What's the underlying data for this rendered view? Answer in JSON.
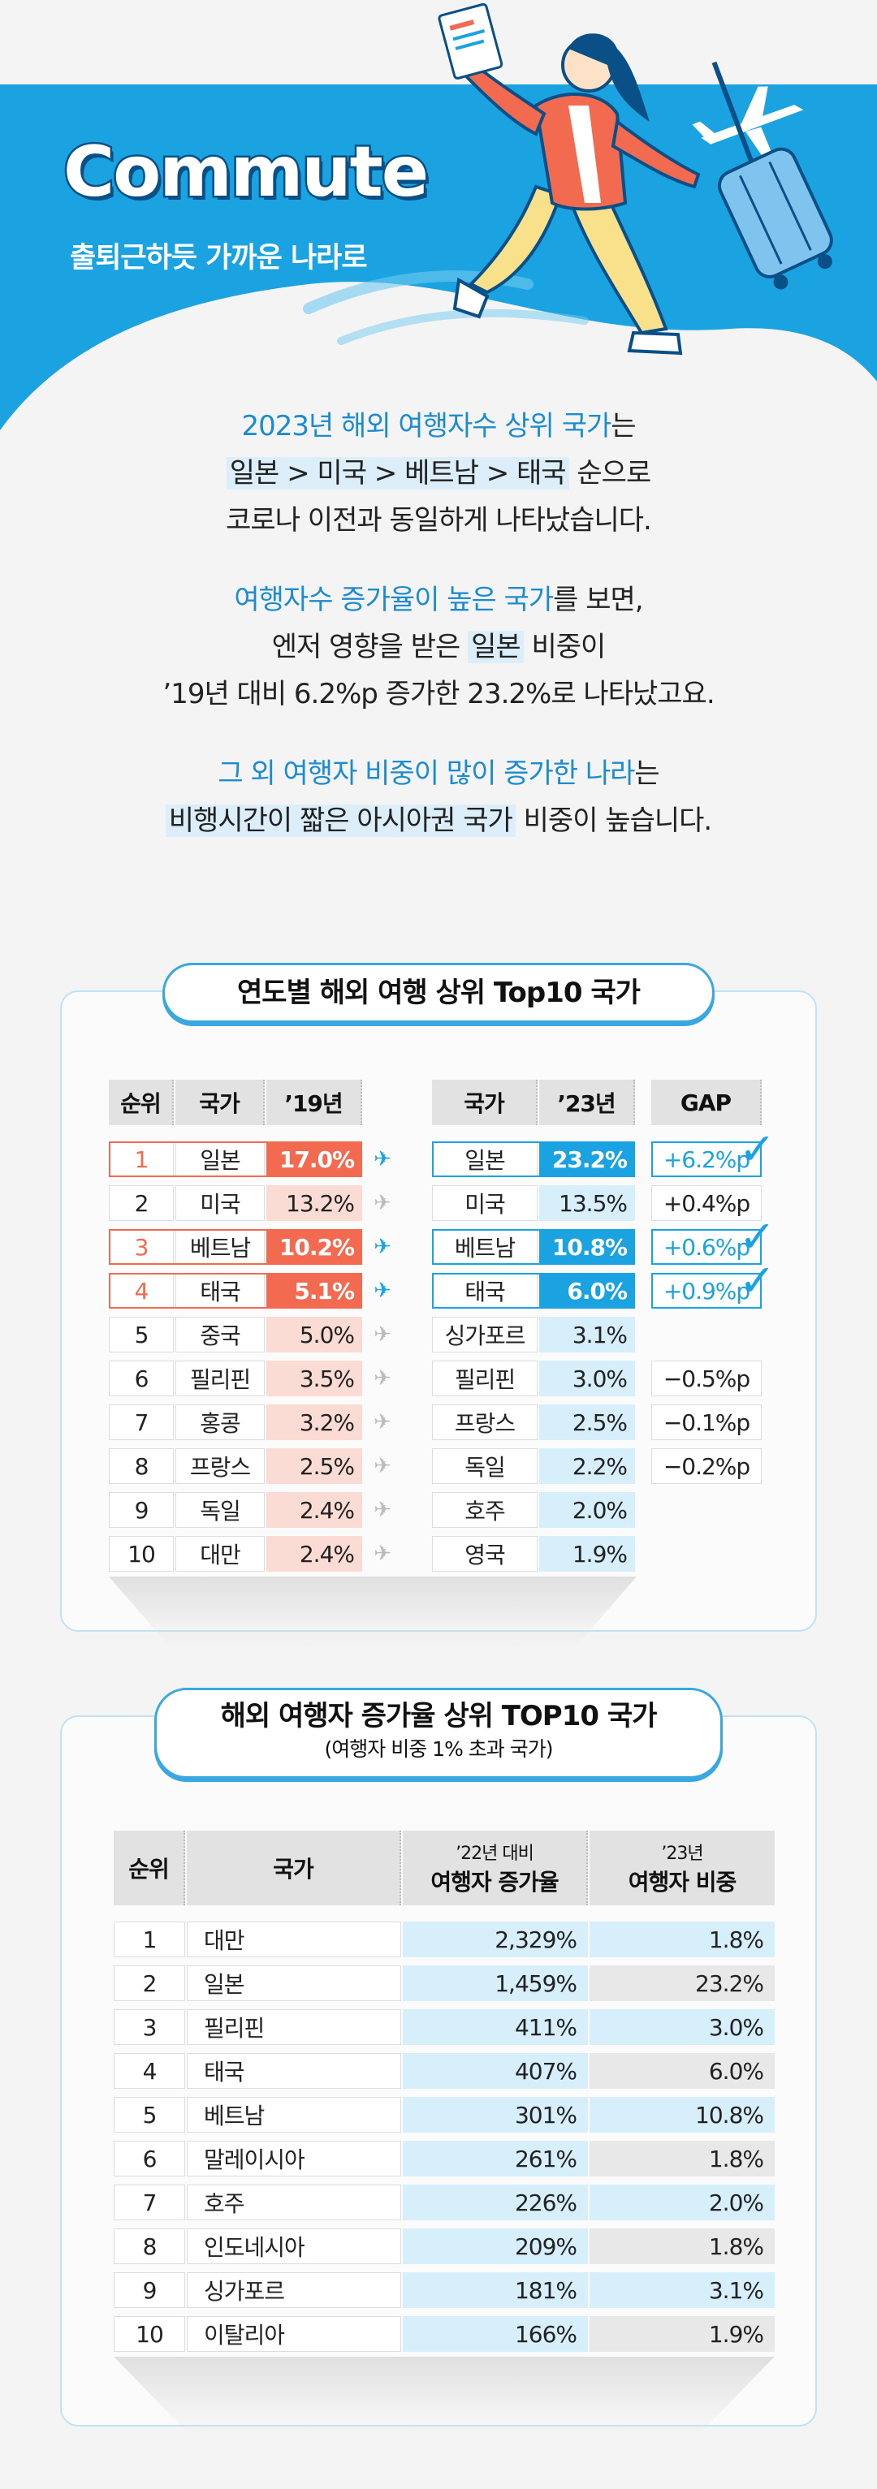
{
  "header": {
    "title": "Commute",
    "subtitle": "출퇴근하듯 가까운 나라로"
  },
  "intro": {
    "p1_line1_a": "2023년 해외 여행자수 상위 국가",
    "p1_line1_b": "는",
    "p1_line2_a": "일본 > 미국 > 베트남 > 태국",
    "p1_line2_b": " 순으로",
    "p1_line3": "코로나 이전과 동일하게 나타났습니다.",
    "p2_line1_a": "여행자수 증가율이 높은 국가",
    "p2_line1_b": "를 보면,",
    "p2_line2_a": "엔저 영향을 받은 ",
    "p2_line2_b": "일본",
    "p2_line2_c": " 비중이",
    "p2_line3": "’19년 대비 6.2%p 증가한 23.2%로 나타났고요.",
    "p3_line1_a": "그 외 여행자 비중이 많이 증가한 나라",
    "p3_line1_b": "는",
    "p3_line2_a": "비행시간이 짧은 아시아권 국가",
    "p3_line2_b": " 비중이 높습니다."
  },
  "table1": {
    "title": "연도별 해외 여행 상위 Top10 국가",
    "headers": {
      "rank": "순위",
      "country": "국가",
      "y19": "’19년",
      "country2": "국가",
      "y23": "’23년",
      "gap": "GAP"
    },
    "rows": [
      {
        "rank": "1",
        "c19": "일본",
        "v19": "17.0%",
        "c23": "일본",
        "v23": "23.2%",
        "gap": "+6.2%p",
        "highlight": true
      },
      {
        "rank": "2",
        "c19": "미국",
        "v19": "13.2%",
        "c23": "미국",
        "v23": "13.5%",
        "gap": "+0.4%p",
        "highlight": false
      },
      {
        "rank": "3",
        "c19": "베트남",
        "v19": "10.2%",
        "c23": "베트남",
        "v23": "10.8%",
        "gap": "+0.6%p",
        "highlight": true
      },
      {
        "rank": "4",
        "c19": "태국",
        "v19": "5.1%",
        "c23": "태국",
        "v23": "6.0%",
        "gap": "+0.9%p",
        "highlight": true
      },
      {
        "rank": "5",
        "c19": "중국",
        "v19": "5.0%",
        "c23": "싱가포르",
        "v23": "3.1%",
        "gap": "",
        "highlight": false
      },
      {
        "rank": "6",
        "c19": "필리핀",
        "v19": "3.5%",
        "c23": "필리핀",
        "v23": "3.0%",
        "gap": "−0.5%p",
        "highlight": false
      },
      {
        "rank": "7",
        "c19": "홍콩",
        "v19": "3.2%",
        "c23": "프랑스",
        "v23": "2.5%",
        "gap": "−0.1%p",
        "highlight": false
      },
      {
        "rank": "8",
        "c19": "프랑스",
        "v19": "2.5%",
        "c23": "독일",
        "v23": "2.2%",
        "gap": "−0.2%p",
        "highlight": false
      },
      {
        "rank": "9",
        "c19": "독일",
        "v19": "2.4%",
        "c23": "호주",
        "v23": "2.0%",
        "gap": "",
        "highlight": false
      },
      {
        "rank": "10",
        "c19": "대만",
        "v19": "2.4%",
        "c23": "영국",
        "v23": "1.9%",
        "gap": "",
        "highlight": false
      }
    ]
  },
  "table2": {
    "title": "해외 여행자 증가율 상위 TOP10 국가",
    "subtitle": "(여행자 비중 1% 초과 국가)",
    "headers": {
      "rank": "순위",
      "country": "국가",
      "growth_small": "’22년 대비",
      "growth": "여행자 증가율",
      "share_small": "’23년",
      "share": "여행자 비중"
    },
    "rows": [
      {
        "rank": "1",
        "country": "대만",
        "growth": "2,329%",
        "share": "1.8%"
      },
      {
        "rank": "2",
        "country": "일본",
        "growth": "1,459%",
        "share": "23.2%"
      },
      {
        "rank": "3",
        "country": "필리핀",
        "growth": "411%",
        "share": "3.0%"
      },
      {
        "rank": "4",
        "country": "태국",
        "growth": "407%",
        "share": "6.0%"
      },
      {
        "rank": "5",
        "country": "베트남",
        "growth": "301%",
        "share": "10.8%"
      },
      {
        "rank": "6",
        "country": "말레이시아",
        "growth": "261%",
        "share": "1.8%"
      },
      {
        "rank": "7",
        "country": "호주",
        "growth": "226%",
        "share": "2.0%"
      },
      {
        "rank": "8",
        "country": "인도네시아",
        "growth": "209%",
        "share": "1.8%"
      },
      {
        "rank": "9",
        "country": "싱가포르",
        "growth": "181%",
        "share": "3.1%"
      },
      {
        "rank": "10",
        "country": "이탈리아",
        "growth": "166%",
        "share": "1.9%"
      }
    ]
  },
  "colors": {
    "sky": "#1aa3e0",
    "accent_red": "#f26a4f",
    "pale_red": "#fbdcd4",
    "accent_blue": "#1aa3e0",
    "pale_blue": "#d6effb"
  },
  "icons": {
    "arrow": "plane-arrow-icon",
    "check": "checkmark-icon",
    "plane": "airplane-icon"
  }
}
